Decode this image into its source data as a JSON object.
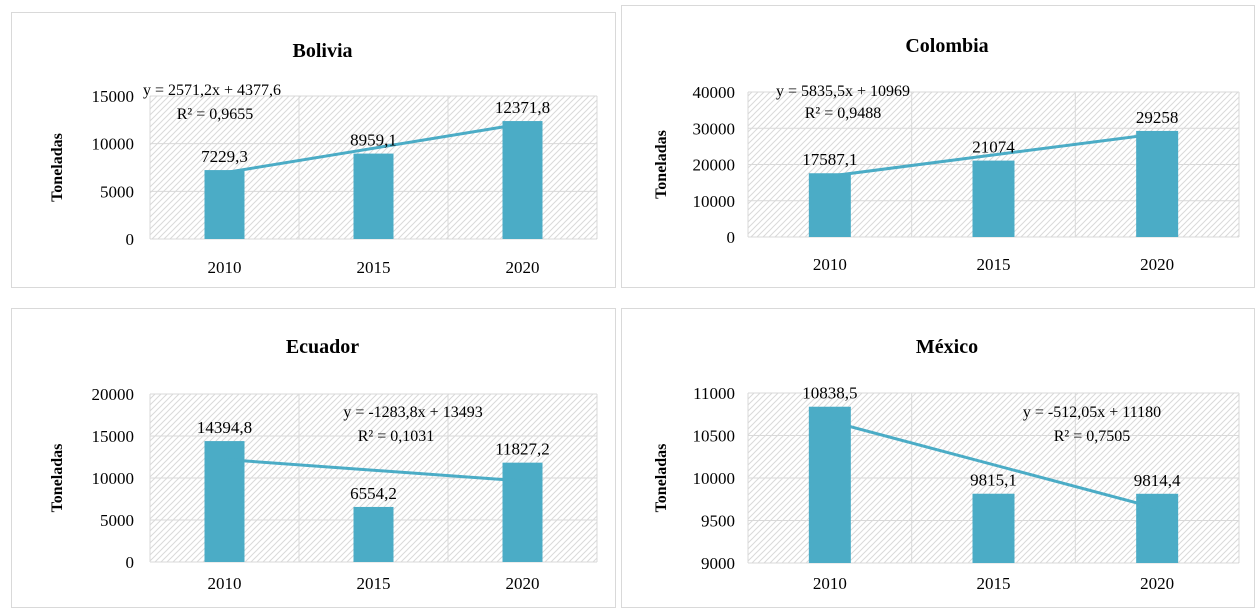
{
  "chart_data": [
    {
      "type": "bar",
      "title": "Bolivia",
      "ylabel": "Toneladas",
      "categories": [
        "2010",
        "2015",
        "2020"
      ],
      "values": [
        7229.3,
        8959.1,
        12371.8
      ],
      "value_labels": [
        "7229,3",
        "8959,1",
        "12371,8"
      ],
      "ylim": [
        0,
        15000
      ],
      "yticks": [
        "0",
        "5000",
        "10000",
        "15000"
      ],
      "trendline": {
        "slope": 2571.2,
        "intercept": 4377.6,
        "equation": "y = 2571,2x + 4377,6",
        "r2": "R² = 0,9655"
      },
      "grid": true,
      "bar_color": "#4bacc6",
      "line_color": "#4bacc6"
    },
    {
      "type": "bar",
      "title": "Colombia",
      "ylabel": "Toneladas",
      "categories": [
        "2010",
        "2015",
        "2020"
      ],
      "values": [
        17587.1,
        21074,
        29258
      ],
      "value_labels": [
        "17587,1",
        "21074",
        "29258"
      ],
      "ylim": [
        0,
        40000
      ],
      "yticks": [
        "0",
        "10000",
        "20000",
        "30000",
        "40000"
      ],
      "trendline": {
        "slope": 5835.5,
        "intercept": 10969,
        "equation": "y = 5835,5x + 10969",
        "r2": "R² = 0,9488"
      },
      "grid": true,
      "bar_color": "#4bacc6",
      "line_color": "#4bacc6"
    },
    {
      "type": "bar",
      "title": "Ecuador",
      "ylabel": "Toneladas",
      "categories": [
        "2010",
        "2015",
        "2020"
      ],
      "values": [
        14394.8,
        6554.2,
        11827.2
      ],
      "value_labels": [
        "14394,8",
        "6554,2",
        "11827,2"
      ],
      "ylim": [
        0,
        20000
      ],
      "yticks": [
        "0",
        "5000",
        "10000",
        "15000",
        "20000"
      ],
      "trendline": {
        "slope": -1283.8,
        "intercept": 13493,
        "equation": "y = -1283,8x + 13493",
        "r2": "R² = 0,1031"
      },
      "grid": true,
      "bar_color": "#4bacc6",
      "line_color": "#4bacc6"
    },
    {
      "type": "bar",
      "title": "México",
      "ylabel": "Toneladas",
      "categories": [
        "2010",
        "2015",
        "2020"
      ],
      "values": [
        10838.5,
        9815.1,
        9814.4
      ],
      "value_labels": [
        "10838,5",
        "9815,1",
        "9814,4"
      ],
      "ylim": [
        9000,
        11000
      ],
      "yticks": [
        "9000",
        "9500",
        "10000",
        "10500",
        "11000"
      ],
      "trendline": {
        "slope": -512.05,
        "intercept": 11180,
        "equation": "y = -512,05x + 11180",
        "r2": "R² = 0,7505"
      },
      "grid": true,
      "bar_color": "#4bacc6",
      "line_color": "#4bacc6"
    }
  ]
}
